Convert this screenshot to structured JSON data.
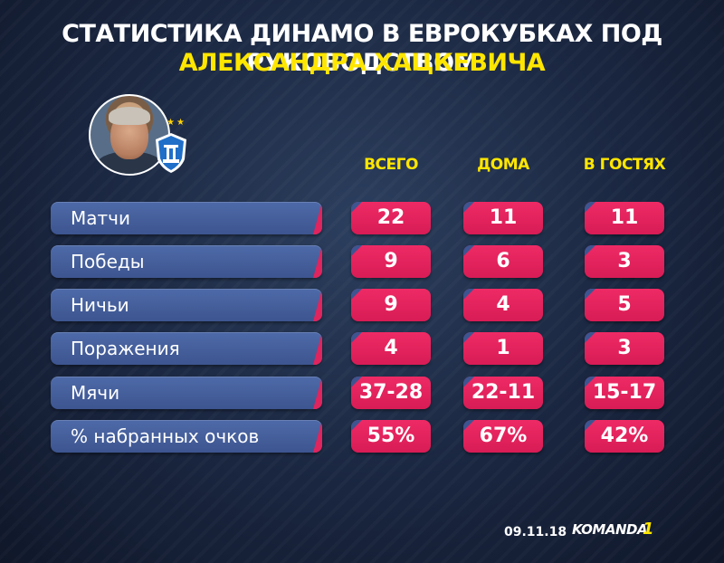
{
  "header": {
    "title_line1": "СТАТИСТИКА ДИНАМО В ЕВРОКУБКАХ ПОД РУКОВОДСТВОМ",
    "title_line2": "АЛЕКСАНДРА ХАЦКЕВИЧА"
  },
  "columns": [
    "ВСЕГО",
    "ДОМА",
    "В ГОСТЯХ"
  ],
  "rows": [
    {
      "label": "Матчи",
      "values": [
        "22",
        "11",
        "11"
      ]
    },
    {
      "label": "Победы",
      "values": [
        "9",
        "6",
        "3"
      ]
    },
    {
      "label": "Ничьи",
      "values": [
        "9",
        "4",
        "5"
      ]
    },
    {
      "label": "Поражения",
      "values": [
        "4",
        "1",
        "3"
      ]
    },
    {
      "label": "Мячи",
      "values": [
        "37-28",
        "22-11",
        "15-17"
      ]
    },
    {
      "label": "% набранных очков",
      "values": [
        "55%",
        "67%",
        "42%"
      ]
    }
  ],
  "footer": {
    "date": "09.11.18",
    "brand": "KOMANDA",
    "brand_num": "1"
  },
  "colors": {
    "accent_yellow": "#ffe600",
    "cell_pink": "#e0245e",
    "label_blue": "#4763a0"
  }
}
